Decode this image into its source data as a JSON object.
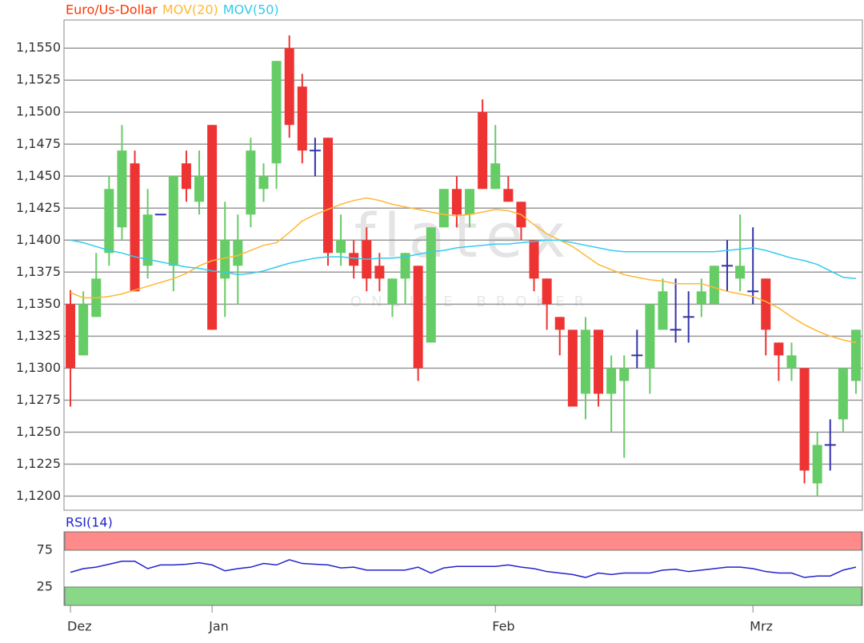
{
  "chart_data": [
    {
      "type": "candlestick",
      "series_name": "Euro/Us-Dollar",
      "series_color": "#ff3300",
      "color_up": "#66cc66",
      "color_down": "#ee3333",
      "color_doji": "#3333aa",
      "watermark": "flatex",
      "watermark_sub": "ONLINE BROKER",
      "categories": [
        "Dez",
        null,
        null,
        null,
        null,
        null,
        null,
        null,
        null,
        null,
        null,
        "Jan",
        null,
        null,
        null,
        null,
        null,
        null,
        null,
        null,
        null,
        null,
        null,
        null,
        null,
        null,
        null,
        null,
        null,
        null,
        null,
        null,
        null,
        "Feb",
        null,
        null,
        null,
        null,
        null,
        null,
        null,
        null,
        null,
        null,
        null,
        null,
        null,
        null,
        null,
        null,
        null,
        null,
        null,
        "Mrz",
        null,
        null,
        null,
        null,
        null,
        null,
        null,
        null
      ],
      "open": [
        1.135,
        1.131,
        1.134,
        1.139,
        1.141,
        1.146,
        1.138,
        1.142,
        1.138,
        1.146,
        1.143,
        1.149,
        1.137,
        1.138,
        1.142,
        1.144,
        1.146,
        1.155,
        1.152,
        1.147,
        1.148,
        1.139,
        1.139,
        1.14,
        1.138,
        1.135,
        1.137,
        1.138,
        1.132,
        1.141,
        1.144,
        1.142,
        1.15,
        1.144,
        1.144,
        1.143,
        1.14,
        1.137,
        1.134,
        1.133,
        1.128,
        1.133,
        1.128,
        1.129,
        1.131,
        1.13,
        1.133,
        1.133,
        1.134,
        1.135,
        1.135,
        1.138,
        1.137,
        1.136,
        1.137,
        1.132,
        1.13,
        1.13,
        1.121,
        1.124,
        1.126,
        1.129
      ],
      "high": [
        1.1361,
        1.136,
        1.139,
        1.145,
        1.149,
        1.147,
        1.144,
        1.142,
        1.145,
        1.147,
        1.147,
        1.149,
        1.143,
        1.142,
        1.148,
        1.146,
        1.154,
        1.156,
        1.153,
        1.148,
        1.148,
        1.142,
        1.14,
        1.141,
        1.139,
        1.137,
        1.139,
        1.138,
        1.141,
        1.144,
        1.145,
        1.144,
        1.151,
        1.149,
        1.145,
        1.143,
        1.14,
        1.137,
        1.134,
        1.133,
        1.134,
        1.133,
        1.131,
        1.131,
        1.133,
        1.135,
        1.137,
        1.137,
        1.136,
        1.137,
        1.138,
        1.14,
        1.142,
        1.141,
        1.137,
        1.132,
        1.132,
        1.13,
        1.125,
        1.126,
        1.13,
        1.133
      ],
      "low": [
        1.127,
        1.131,
        1.134,
        1.138,
        1.14,
        1.136,
        1.137,
        1.142,
        1.136,
        1.143,
        1.142,
        1.133,
        1.134,
        1.135,
        1.141,
        1.143,
        1.144,
        1.148,
        1.146,
        1.145,
        1.138,
        1.138,
        1.137,
        1.136,
        1.136,
        1.134,
        1.135,
        1.129,
        1.132,
        1.141,
        1.141,
        1.141,
        1.144,
        1.144,
        1.143,
        1.14,
        1.136,
        1.133,
        1.131,
        1.127,
        1.126,
        1.127,
        1.125,
        1.123,
        1.13,
        1.128,
        1.133,
        1.132,
        1.132,
        1.134,
        1.135,
        1.136,
        1.136,
        1.135,
        1.131,
        1.129,
        1.129,
        1.121,
        1.12,
        1.122,
        1.125,
        1.128
      ],
      "close": [
        1.13,
        1.135,
        1.137,
        1.144,
        1.147,
        1.136,
        1.142,
        1.142,
        1.145,
        1.144,
        1.145,
        1.133,
        1.14,
        1.14,
        1.147,
        1.145,
        1.154,
        1.149,
        1.147,
        1.147,
        1.139,
        1.14,
        1.138,
        1.137,
        1.137,
        1.137,
        1.139,
        1.13,
        1.141,
        1.144,
        1.142,
        1.144,
        1.144,
        1.146,
        1.143,
        1.141,
        1.137,
        1.135,
        1.133,
        1.127,
        1.133,
        1.128,
        1.13,
        1.13,
        1.131,
        1.135,
        1.136,
        1.133,
        1.134,
        1.136,
        1.138,
        1.138,
        1.138,
        1.136,
        1.133,
        1.131,
        1.131,
        1.122,
        1.124,
        1.124,
        1.13,
        1.133
      ],
      "series": [
        {
          "name": "MOV(20)",
          "color": "#ffb833",
          "values": [
            1.1359,
            1.1355,
            1.1355,
            1.1356,
            1.1358,
            1.1361,
            1.1364,
            1.1367,
            1.137,
            1.1374,
            1.138,
            1.1384,
            1.1386,
            1.1388,
            1.1392,
            1.1396,
            1.1398,
            1.1406,
            1.1415,
            1.142,
            1.1424,
            1.1428,
            1.1431,
            1.1433,
            1.1431,
            1.1428,
            1.1426,
            1.1424,
            1.1422,
            1.142,
            1.1419,
            1.142,
            1.1422,
            1.1424,
            1.1423,
            1.142,
            1.1412,
            1.1405,
            1.14,
            1.1395,
            1.1388,
            1.1381,
            1.1377,
            1.1373,
            1.1371,
            1.1369,
            1.1368,
            1.1366,
            1.1366,
            1.1366,
            1.1363,
            1.136,
            1.1358,
            1.1356,
            1.1352,
            1.1347,
            1.134,
            1.1334,
            1.1329,
            1.1325,
            1.1322,
            1.132
          ]
        },
        {
          "name": "MOV(50)",
          "color": "#33ccee",
          "values": [
            1.14,
            1.1398,
            1.1395,
            1.1392,
            1.139,
            1.1387,
            1.1385,
            1.1383,
            1.1381,
            1.1379,
            1.1378,
            1.1376,
            1.1375,
            1.1373,
            1.1374,
            1.1376,
            1.1379,
            1.1382,
            1.1384,
            1.1386,
            1.1387,
            1.1387,
            1.1386,
            1.1385,
            1.1386,
            1.1386,
            1.1387,
            1.1389,
            1.1391,
            1.1392,
            1.1394,
            1.1395,
            1.1396,
            1.1397,
            1.1397,
            1.1398,
            1.1399,
            1.14,
            1.14,
            1.1398,
            1.1396,
            1.1394,
            1.1392,
            1.1391,
            1.1391,
            1.1391,
            1.1391,
            1.1391,
            1.1391,
            1.1391,
            1.1391,
            1.1392,
            1.1393,
            1.1394,
            1.1392,
            1.1389,
            1.1386,
            1.1384,
            1.1381,
            1.1376,
            1.1371,
            1.137
          ]
        }
      ],
      "ylim": [
        1.1189,
        1.1572
      ],
      "yticks": [
        {
          "value": 1.12,
          "label": "1,1200"
        },
        {
          "value": 1.1225,
          "label": "1,1225"
        },
        {
          "value": 1.125,
          "label": "1,1250"
        },
        {
          "value": 1.1275,
          "label": "1,1275"
        },
        {
          "value": 1.13,
          "label": "1,1300"
        },
        {
          "value": 1.1325,
          "label": "1,1325"
        },
        {
          "value": 1.135,
          "label": "1,1350"
        },
        {
          "value": 1.1375,
          "label": "1,1375"
        },
        {
          "value": 1.14,
          "label": "1,1400"
        },
        {
          "value": 1.1425,
          "label": "1,1425"
        },
        {
          "value": 1.145,
          "label": "1,1450"
        },
        {
          "value": 1.1475,
          "label": "1,1475"
        },
        {
          "value": 1.15,
          "label": "1,1500"
        },
        {
          "value": 1.1525,
          "label": "1,1525"
        },
        {
          "value": 1.155,
          "label": "1,1550"
        }
      ],
      "grid": true
    },
    {
      "type": "line",
      "title": "RSI(14)",
      "color": "#2222cc",
      "values": [
        45,
        50,
        52,
        56,
        60,
        60,
        50,
        55,
        55,
        56,
        58,
        55,
        47,
        50,
        52,
        57,
        55,
        62,
        57,
        56,
        55,
        51,
        52,
        48,
        48,
        48,
        48,
        52,
        44,
        51,
        53,
        53,
        53,
        53,
        55,
        52,
        50,
        46,
        44,
        42,
        38,
        44,
        42,
        44,
        44,
        44,
        48,
        49,
        46,
        48,
        50,
        52,
        52,
        50,
        46,
        44,
        44,
        38,
        40,
        40,
        48,
        52
      ],
      "bands": [
        {
          "from": 75,
          "to": 100,
          "color": "#ff8a8a"
        },
        {
          "from": 0,
          "to": 25,
          "color": "#88d888"
        }
      ],
      "ylim": [
        0,
        100
      ],
      "yticks": [
        25,
        75
      ]
    }
  ]
}
